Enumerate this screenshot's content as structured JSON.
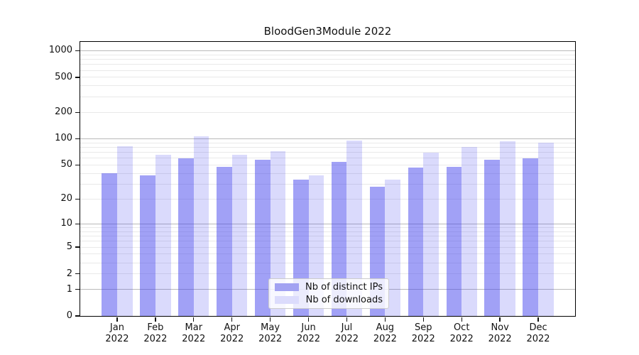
{
  "title": "BloodGen3Module 2022",
  "chart_data": {
    "type": "bar",
    "title": "BloodGen3Module 2022",
    "categories": [
      "Jan 2022",
      "Feb 2022",
      "Mar 2022",
      "Apr 2022",
      "May 2022",
      "Jun 2022",
      "Jul 2022",
      "Aug 2022",
      "Sep 2022",
      "Oct 2022",
      "Nov 2022",
      "Dec 2022"
    ],
    "months": [
      "Jan",
      "Feb",
      "Mar",
      "Apr",
      "May",
      "Jun",
      "Jul",
      "Aug",
      "Sep",
      "Oct",
      "Nov",
      "Dec"
    ],
    "year": "2022",
    "series": [
      {
        "name": "Nb of distinct IPs",
        "color": "#a2a2f2",
        "base_color": "#4444ee",
        "alpha": 0.5,
        "values": [
          40,
          38,
          60,
          48,
          58,
          34,
          54,
          28,
          47,
          48,
          58,
          60
        ]
      },
      {
        "name": "Nb of downloads",
        "color": "#dcdcfc",
        "base_color": "#4444ee",
        "alpha": 0.2,
        "values": [
          82,
          66,
          106,
          66,
          72,
          38,
          95,
          34,
          70,
          80,
          94,
          91
        ]
      }
    ],
    "xlabel": "",
    "ylabel": "",
    "yscale": "log1p",
    "ylim": [
      0,
      1260
    ],
    "y_ticks": [
      0,
      1,
      2,
      5,
      10,
      20,
      50,
      100,
      200,
      500,
      1000
    ],
    "major_grid_values": [
      1,
      10,
      100,
      1000
    ],
    "grid": true,
    "legend_position": "lower center",
    "grid_major_color": "#b9b9b9",
    "grid_minor_color": "#e9e9e9"
  }
}
